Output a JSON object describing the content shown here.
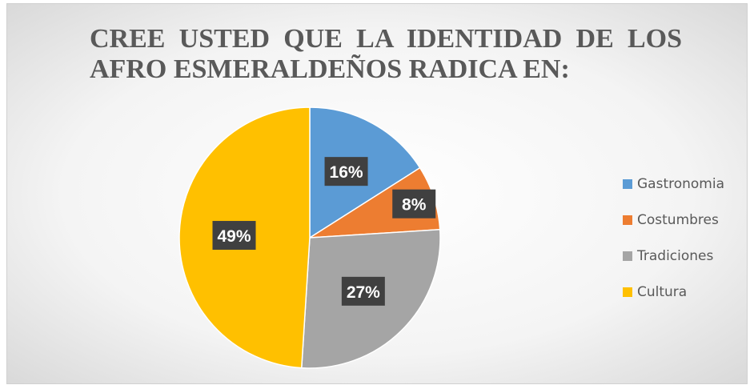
{
  "chart_data": {
    "type": "pie",
    "title": "CREE USTED QUE LA IDENTIDAD DE LOS AFRO ESMERALDEÑOS RADICA EN:",
    "categories": [
      "Gastronomia",
      "Costumbres",
      "Tradiciones",
      "Cultura"
    ],
    "values": [
      16,
      8,
      27,
      49
    ],
    "value_labels": [
      "16%",
      "8%",
      "27%",
      "49%"
    ],
    "colors": [
      "#5b9bd5",
      "#ed7d31",
      "#a5a5a5",
      "#ffc000"
    ],
    "legend": "right"
  }
}
